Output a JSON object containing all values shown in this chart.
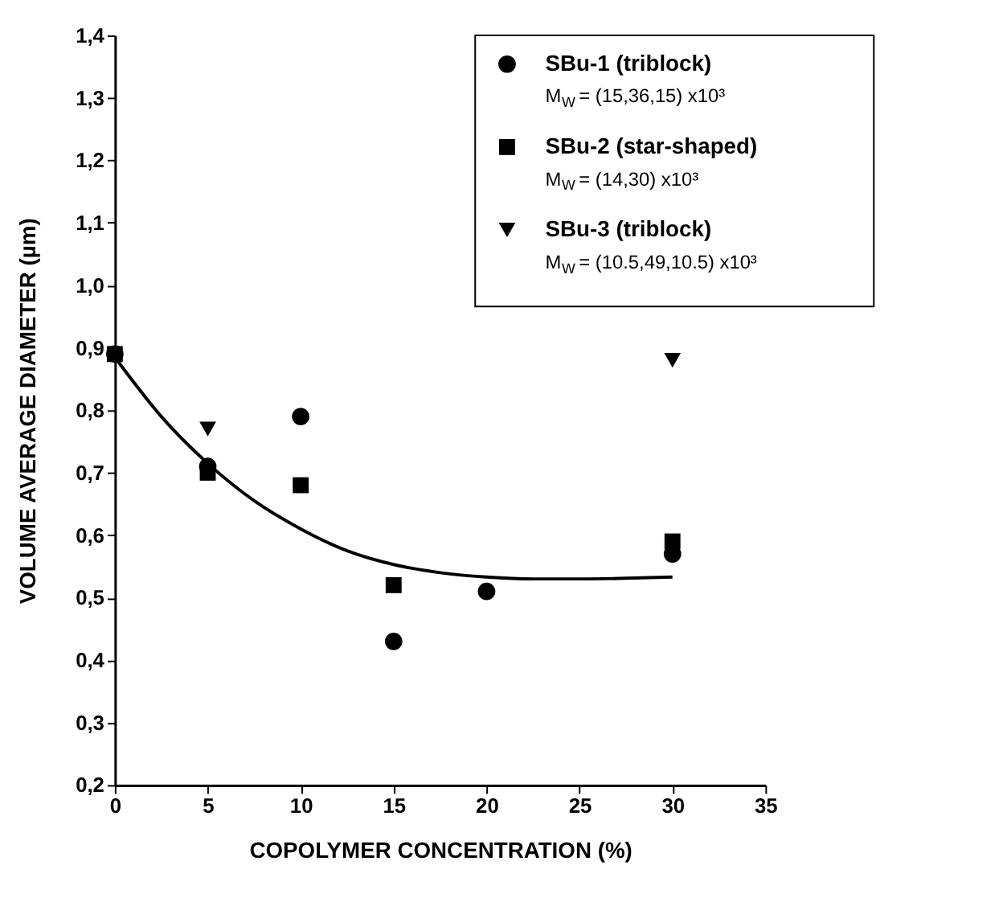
{
  "chart_data": {
    "type": "scatter",
    "xlabel": "COPOLYMER CONCENTRATION (%)",
    "ylabel": "VOLUME AVERAGE DIAMETER (µm)",
    "xlim": [
      0,
      35
    ],
    "xticks": [
      0,
      5,
      10,
      15,
      20,
      25,
      30,
      35
    ],
    "ylim": [
      0.2,
      1.4
    ],
    "yticks": [
      {
        "value": 0.2,
        "label": "0,2"
      },
      {
        "value": 0.3,
        "label": "0,3"
      },
      {
        "value": 0.4,
        "label": "0,4"
      },
      {
        "value": 0.5,
        "label": "0,5"
      },
      {
        "value": 0.6,
        "label": "0,6"
      },
      {
        "value": 0.7,
        "label": "0,7"
      },
      {
        "value": 0.8,
        "label": "0,8"
      },
      {
        "value": 0.9,
        "label": "0,9"
      },
      {
        "value": 1.0,
        "label": "1,0"
      },
      {
        "value": 1.1,
        "label": "1,1"
      },
      {
        "value": 1.2,
        "label": "1,2"
      },
      {
        "value": 1.3,
        "label": "1,3"
      },
      {
        "value": 1.4,
        "label": "1,4"
      }
    ],
    "grid": false,
    "legend": "top right",
    "annotations": [
      "M$_{W}$= (15,36,15) x10³",
      "M$_{W}$= (14,30) x10³",
      "M$_{W}$ = (10.5,49,10.5) x10³"
    ],
    "series": [
      {
        "name": "SBu-1 (triblock)",
        "color": "#000000",
        "marker": "circle",
        "x": [
          0,
          5,
          10,
          15,
          20,
          30
        ],
        "values": [
          0.89,
          0.71,
          0.79,
          0.43,
          0.51,
          0.57
        ]
      },
      {
        "name": "SBu-2 (star-shaped)",
        "color": "#000000",
        "marker": "square",
        "x": [
          0,
          5,
          10,
          15,
          30
        ],
        "values": [
          0.89,
          0.7,
          0.68,
          0.52,
          0.59
        ]
      },
      {
        "name": "SBu-3 (triblock)",
        "color": "#000000",
        "marker": "triangle",
        "x": [
          5,
          30
        ],
        "values": [
          0.77,
          0.88
        ]
      },
      {
        "type": "line",
        "color": "#000000",
        "marker": "none",
        "line_style": "solid",
        "x": [
          0,
          2.5,
          5,
          7.5,
          10,
          12.5,
          15,
          17.5,
          20,
          22.5,
          25,
          27.5,
          30
        ],
        "values": [
          0.885,
          0.79,
          0.715,
          0.655,
          0.61,
          0.575,
          0.553,
          0.54,
          0.533,
          0.53,
          0.53,
          0.531,
          0.533
        ]
      }
    ]
  }
}
